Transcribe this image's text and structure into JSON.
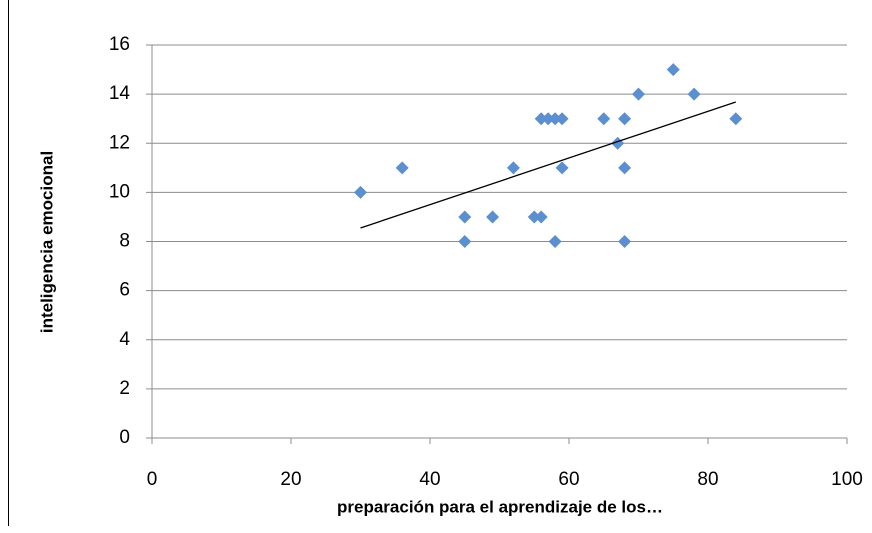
{
  "chart_data": {
    "type": "scatter",
    "x_label": "preparación para el aprendizaje de los…",
    "y_label": "inteligencia emocional",
    "x": [
      30,
      36,
      45,
      45,
      49,
      52,
      55,
      56,
      56,
      57,
      58,
      59,
      58,
      59,
      65,
      67,
      68,
      68,
      68,
      70,
      75,
      78,
      84
    ],
    "values": [
      10,
      11,
      9,
      8,
      9,
      11,
      9,
      9,
      13,
      13,
      13,
      13,
      8,
      11,
      13,
      12,
      13,
      11,
      8,
      14,
      15,
      14,
      13
    ],
    "color": "#5b8fd0",
    "trendline": {
      "x": [
        30,
        84
      ],
      "y": [
        8.55,
        13.68
      ],
      "color": "#000000"
    },
    "xlim": [
      0,
      100
    ],
    "xticks": [
      0,
      20,
      40,
      60,
      80,
      100
    ],
    "ylim": [
      0,
      16
    ],
    "yticks": [
      0,
      2,
      4,
      6,
      8,
      10,
      12,
      14,
      16
    ],
    "grid": true
  }
}
